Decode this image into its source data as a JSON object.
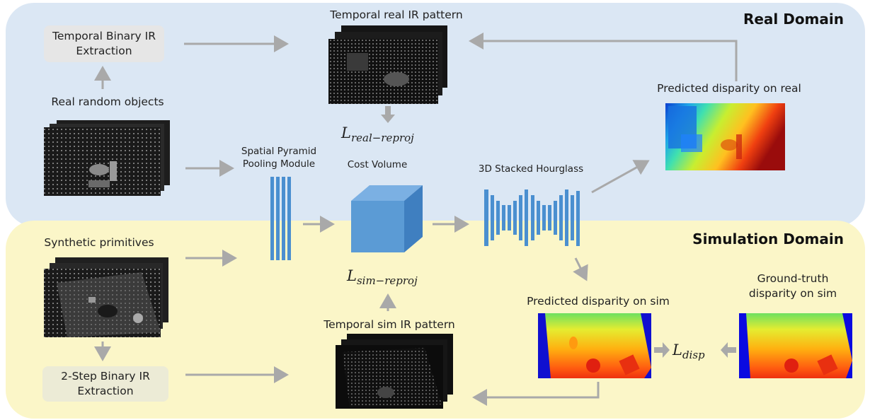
{
  "real_domain": {
    "title": "Real Domain",
    "extraction_box": "Temporal Binary IR Extraction",
    "objects_label": "Real random objects",
    "ir_pattern_label": "Temporal real IR pattern",
    "loss_main": "L",
    "loss_sub": "real−reproj",
    "pred_label": "Predicted disparity on real"
  },
  "sim_domain": {
    "title": "Simulation Domain",
    "primitives_label": "Synthetic primitives",
    "extraction_box": "2-Step Binary IR Extraction",
    "ir_pattern_label": "Temporal sim IR pattern",
    "loss_main": "L",
    "loss_sub": "sim−reproj",
    "pred_label": "Predicted disparity on sim",
    "gt_label": "Ground-truth disparity on sim",
    "disp_loss_main": "L",
    "disp_loss_sub": "disp"
  },
  "network": {
    "spp_label": "Spatial Pyramid Pooling Module",
    "cost_volume_label": "Cost Volume",
    "hourglass_label": "3D Stacked Hourglass"
  },
  "colors": {
    "real_bg": "#dbe7f4",
    "sim_bg": "#fbf6c8",
    "network_blue": "#4a8fd0",
    "arrow_gray": "#a9a9a9",
    "box_gray": "#e6e6e6"
  }
}
